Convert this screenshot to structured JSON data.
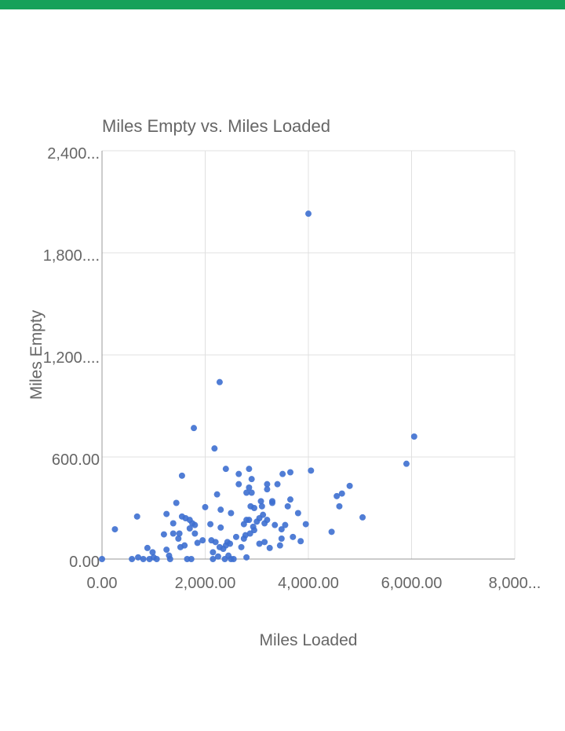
{
  "colors": {
    "top_bar": "#16a15a",
    "point": "#3d6fd0",
    "grid": "#e0e0e0",
    "axis": "#999999"
  },
  "chart_data": {
    "type": "scatter",
    "title": "Miles Empty vs. Miles Loaded",
    "xlabel": "Miles Loaded",
    "ylabel": "Miles Empty",
    "xlim": [
      0,
      8000
    ],
    "ylim": [
      0,
      2400
    ],
    "x_ticks": [
      0,
      2000,
      4000,
      6000,
      8000
    ],
    "y_ticks": [
      0,
      600,
      1200,
      1800,
      2400
    ],
    "x_tick_labels": [
      "0.00",
      "2,000.00",
      "4,000.00",
      "6,000.00",
      "8,000..."
    ],
    "y_tick_labels": [
      "0.00",
      "600.00",
      "1,200....",
      "1,800....",
      "2,400..."
    ],
    "grid": true,
    "series": [
      {
        "points": [
          [
            0,
            0
          ],
          [
            250,
            175
          ],
          [
            580,
            0
          ],
          [
            680,
            250
          ],
          [
            700,
            10
          ],
          [
            800,
            0
          ],
          [
            880,
            65
          ],
          [
            920,
            0
          ],
          [
            980,
            40
          ],
          [
            1000,
            10
          ],
          [
            1060,
            0
          ],
          [
            1200,
            145
          ],
          [
            1250,
            55
          ],
          [
            1250,
            265
          ],
          [
            1300,
            20
          ],
          [
            1320,
            0
          ],
          [
            1380,
            150
          ],
          [
            1380,
            210
          ],
          [
            1440,
            330
          ],
          [
            1480,
            120
          ],
          [
            1500,
            150
          ],
          [
            1520,
            70
          ],
          [
            1550,
            250
          ],
          [
            1550,
            490
          ],
          [
            1600,
            80
          ],
          [
            1620,
            240
          ],
          [
            1650,
            0
          ],
          [
            1700,
            230
          ],
          [
            1700,
            180
          ],
          [
            1730,
            0
          ],
          [
            1750,
            210
          ],
          [
            1780,
            770
          ],
          [
            1800,
            200
          ],
          [
            1800,
            150
          ],
          [
            1850,
            95
          ],
          [
            1950,
            110
          ],
          [
            2000,
            305
          ],
          [
            2100,
            205
          ],
          [
            2120,
            110
          ],
          [
            2150,
            0
          ],
          [
            2150,
            40
          ],
          [
            2180,
            650
          ],
          [
            2200,
            100
          ],
          [
            2230,
            380
          ],
          [
            2250,
            15
          ],
          [
            2280,
            70
          ],
          [
            2280,
            1040
          ],
          [
            2300,
            290
          ],
          [
            2300,
            185
          ],
          [
            2350,
            60
          ],
          [
            2380,
            0
          ],
          [
            2400,
            80
          ],
          [
            2400,
            530
          ],
          [
            2430,
            100
          ],
          [
            2450,
            20
          ],
          [
            2480,
            90
          ],
          [
            2500,
            0
          ],
          [
            2500,
            270
          ],
          [
            2550,
            0
          ],
          [
            2600,
            130
          ],
          [
            2650,
            440
          ],
          [
            2650,
            500
          ],
          [
            2700,
            70
          ],
          [
            2750,
            120
          ],
          [
            2750,
            205
          ],
          [
            2780,
            140
          ],
          [
            2800,
            390
          ],
          [
            2800,
            230
          ],
          [
            2800,
            10
          ],
          [
            2850,
            230
          ],
          [
            2850,
            530
          ],
          [
            2850,
            420
          ],
          [
            2870,
            150
          ],
          [
            2880,
            310
          ],
          [
            2900,
            390
          ],
          [
            2900,
            470
          ],
          [
            2930,
            190
          ],
          [
            2950,
            170
          ],
          [
            2950,
            300
          ],
          [
            3000,
            220
          ],
          [
            3050,
            90
          ],
          [
            3050,
            240
          ],
          [
            3080,
            340
          ],
          [
            3100,
            310
          ],
          [
            3120,
            260
          ],
          [
            3150,
            100
          ],
          [
            3150,
            210
          ],
          [
            3200,
            230
          ],
          [
            3200,
            410
          ],
          [
            3200,
            440
          ],
          [
            3250,
            65
          ],
          [
            3300,
            330
          ],
          [
            3300,
            340
          ],
          [
            3350,
            200
          ],
          [
            3400,
            440
          ],
          [
            3450,
            80
          ],
          [
            3480,
            120
          ],
          [
            3480,
            175
          ],
          [
            3500,
            500
          ],
          [
            3550,
            200
          ],
          [
            3600,
            310
          ],
          [
            3650,
            350
          ],
          [
            3650,
            510
          ],
          [
            3700,
            130
          ],
          [
            3800,
            270
          ],
          [
            3850,
            105
          ],
          [
            3950,
            205
          ],
          [
            4000,
            2030
          ],
          [
            4050,
            520
          ],
          [
            4450,
            160
          ],
          [
            4550,
            370
          ],
          [
            4600,
            310
          ],
          [
            4650,
            385
          ],
          [
            4800,
            430
          ],
          [
            5050,
            245
          ],
          [
            5900,
            560
          ],
          [
            6050,
            720
          ]
        ]
      }
    ]
  }
}
